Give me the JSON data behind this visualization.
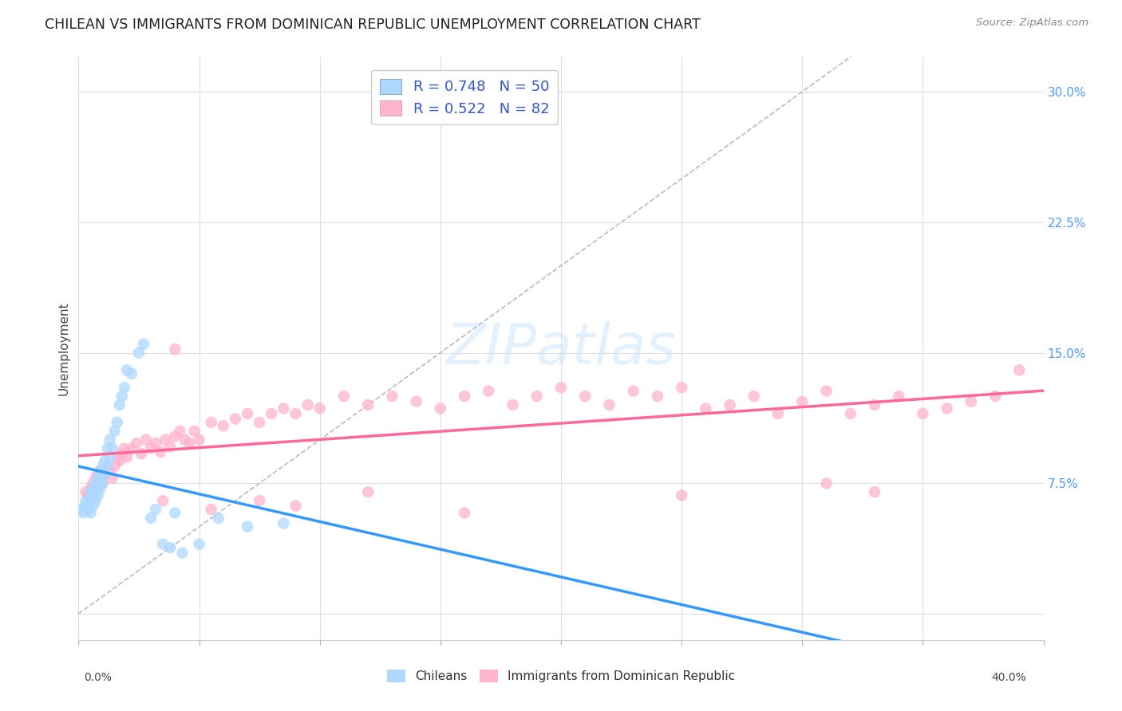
{
  "title": "CHILEAN VS IMMIGRANTS FROM DOMINICAN REPUBLIC UNEMPLOYMENT CORRELATION CHART",
  "source": "Source: ZipAtlas.com",
  "ylabel": "Unemployment",
  "ylabel_right_ticks": [
    0.0,
    0.075,
    0.15,
    0.225,
    0.3
  ],
  "ylabel_right_labels": [
    "",
    "7.5%",
    "15.0%",
    "22.5%",
    "30.0%"
  ],
  "xmin": 0.0,
  "xmax": 0.4,
  "ymin": -0.015,
  "ymax": 0.32,
  "legend_label1": "R = 0.748   N = 50",
  "legend_label2": "R = 0.522   N = 82",
  "legend_color1": "#add8ff",
  "legend_color2": "#ffb3cc",
  "dot_color1": "#add8ff",
  "dot_color2": "#ffb3cc",
  "trend_color1": "#3399ff",
  "trend_color2": "#ff6699",
  "ref_line_color": "#bbbbbb",
  "background_color": "#ffffff",
  "watermark_text": "ZIPatlas",
  "title_fontsize": 12.5,
  "chileans_x": [
    0.001,
    0.002,
    0.003,
    0.003,
    0.004,
    0.004,
    0.005,
    0.005,
    0.005,
    0.006,
    0.006,
    0.006,
    0.007,
    0.007,
    0.007,
    0.008,
    0.008,
    0.008,
    0.009,
    0.009,
    0.009,
    0.01,
    0.01,
    0.01,
    0.011,
    0.011,
    0.012,
    0.012,
    0.013,
    0.013,
    0.014,
    0.015,
    0.016,
    0.017,
    0.018,
    0.019,
    0.02,
    0.022,
    0.025,
    0.027,
    0.03,
    0.032,
    0.035,
    0.038,
    0.04,
    0.043,
    0.05,
    0.058,
    0.07,
    0.085
  ],
  "chileans_y": [
    0.06,
    0.058,
    0.062,
    0.065,
    0.06,
    0.063,
    0.058,
    0.065,
    0.07,
    0.062,
    0.067,
    0.072,
    0.065,
    0.07,
    0.075,
    0.068,
    0.073,
    0.078,
    0.072,
    0.077,
    0.082,
    0.075,
    0.08,
    0.085,
    0.08,
    0.088,
    0.085,
    0.095,
    0.09,
    0.1,
    0.095,
    0.105,
    0.11,
    0.12,
    0.125,
    0.13,
    0.14,
    0.138,
    0.15,
    0.155,
    0.055,
    0.06,
    0.04,
    0.038,
    0.058,
    0.035,
    0.04,
    0.055,
    0.05,
    0.052
  ],
  "dominican_x": [
    0.003,
    0.004,
    0.005,
    0.006,
    0.007,
    0.008,
    0.009,
    0.01,
    0.011,
    0.012,
    0.013,
    0.014,
    0.015,
    0.016,
    0.017,
    0.018,
    0.019,
    0.02,
    0.022,
    0.024,
    0.026,
    0.028,
    0.03,
    0.032,
    0.034,
    0.036,
    0.038,
    0.04,
    0.042,
    0.044,
    0.046,
    0.048,
    0.05,
    0.055,
    0.06,
    0.065,
    0.07,
    0.075,
    0.08,
    0.085,
    0.09,
    0.095,
    0.1,
    0.11,
    0.12,
    0.13,
    0.14,
    0.15,
    0.16,
    0.17,
    0.18,
    0.19,
    0.2,
    0.21,
    0.22,
    0.23,
    0.24,
    0.25,
    0.26,
    0.27,
    0.28,
    0.29,
    0.3,
    0.31,
    0.32,
    0.33,
    0.34,
    0.35,
    0.36,
    0.37,
    0.38,
    0.39,
    0.035,
    0.055,
    0.075,
    0.09,
    0.12,
    0.16,
    0.04,
    0.31,
    0.25,
    0.33
  ],
  "dominican_y": [
    0.07,
    0.068,
    0.072,
    0.075,
    0.078,
    0.08,
    0.082,
    0.075,
    0.08,
    0.085,
    0.082,
    0.078,
    0.085,
    0.09,
    0.088,
    0.092,
    0.095,
    0.09,
    0.095,
    0.098,
    0.092,
    0.1,
    0.095,
    0.098,
    0.093,
    0.1,
    0.096,
    0.102,
    0.105,
    0.1,
    0.098,
    0.105,
    0.1,
    0.11,
    0.108,
    0.112,
    0.115,
    0.11,
    0.115,
    0.118,
    0.115,
    0.12,
    0.118,
    0.125,
    0.12,
    0.125,
    0.122,
    0.118,
    0.125,
    0.128,
    0.12,
    0.125,
    0.13,
    0.125,
    0.12,
    0.128,
    0.125,
    0.13,
    0.118,
    0.12,
    0.125,
    0.115,
    0.122,
    0.128,
    0.115,
    0.12,
    0.125,
    0.115,
    0.118,
    0.122,
    0.125,
    0.14,
    0.065,
    0.06,
    0.065,
    0.062,
    0.07,
    0.058,
    0.152,
    0.075,
    0.068,
    0.07
  ]
}
